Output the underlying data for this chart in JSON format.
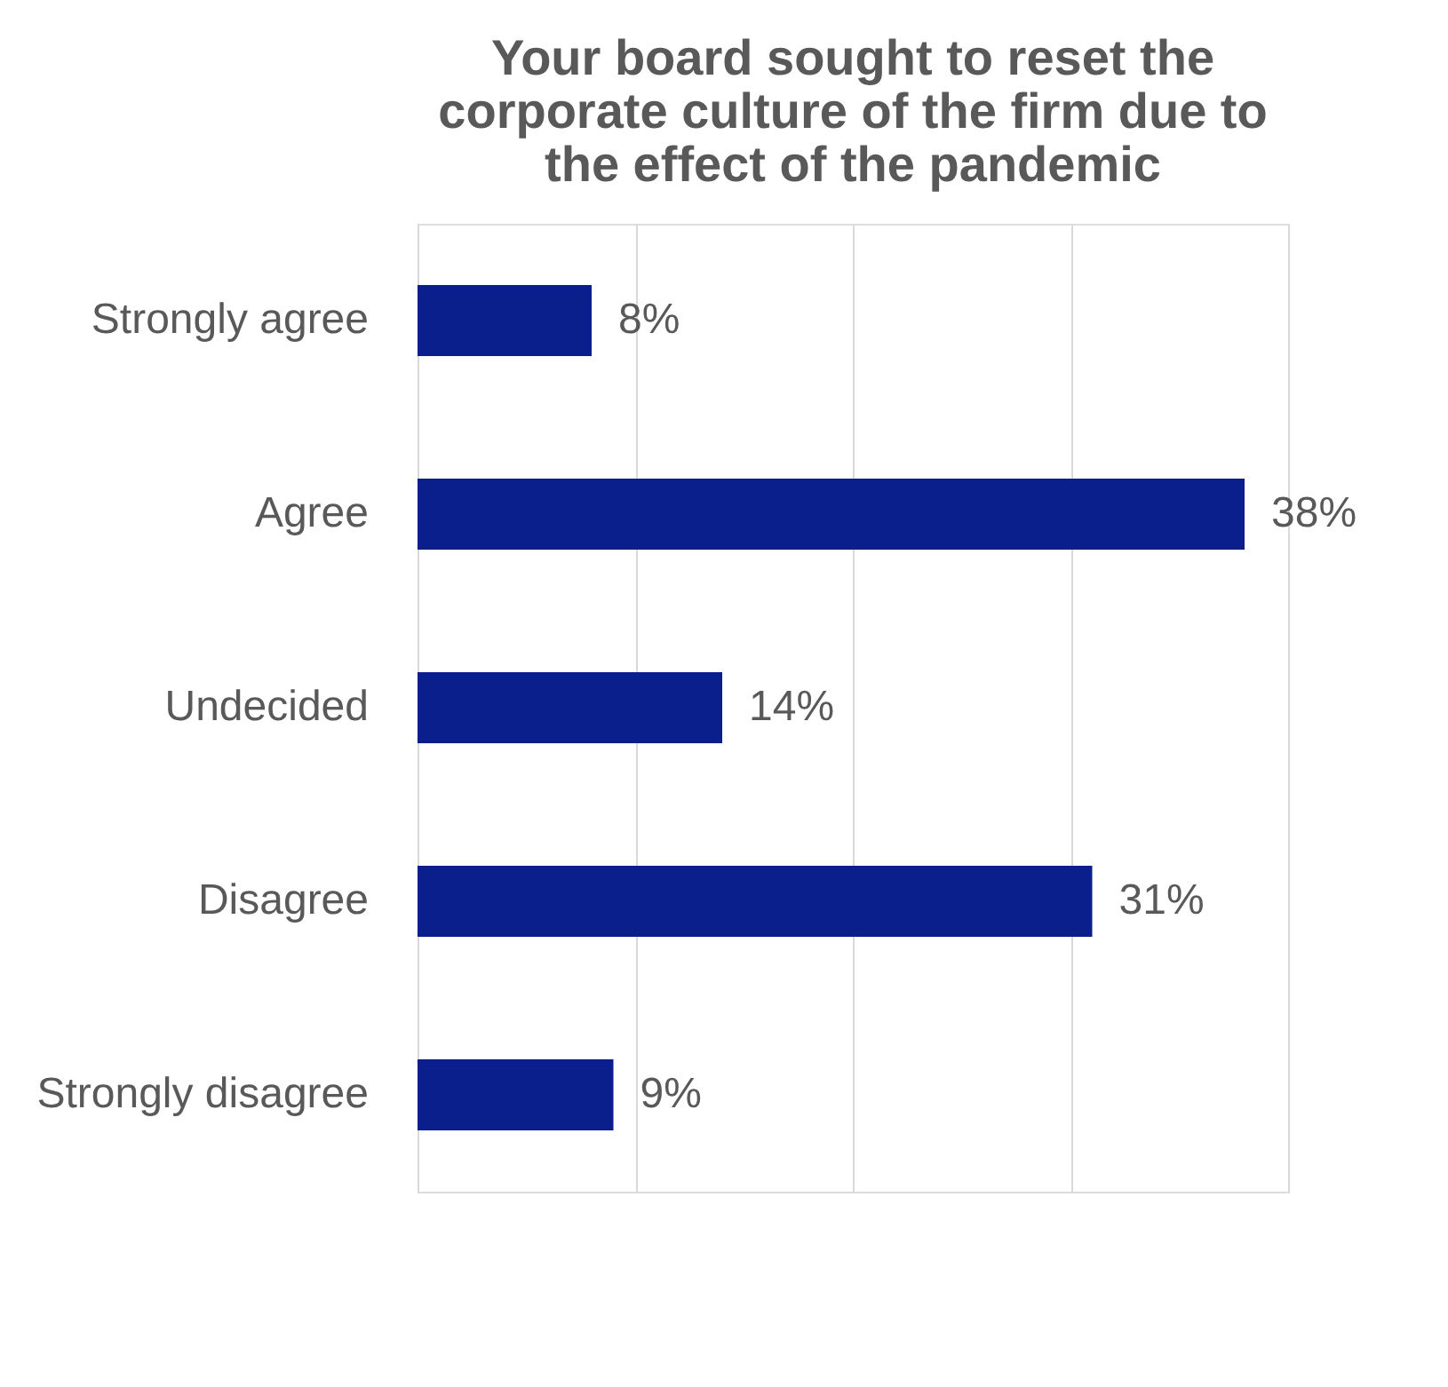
{
  "chart_data": {
    "type": "bar",
    "orientation": "horizontal",
    "title": "Your board sought to reset the corporate culture of the firm due to the effect of the pandemic",
    "categories": [
      "Strongly agree",
      "Agree",
      "Undecided",
      "Disagree",
      "Strongly disagree"
    ],
    "values": [
      8,
      38,
      14,
      31,
      9
    ],
    "value_labels": [
      "8%",
      "38%",
      "14%",
      "31%",
      "9%"
    ],
    "color": "#0b1f8c",
    "xlim": [
      0,
      40
    ],
    "xticks": [
      {
        "value": 0,
        "label": null
      },
      {
        "value": 10,
        "label": null
      },
      {
        "value": 20,
        "label": null
      },
      {
        "value": 30,
        "label": null
      },
      {
        "value": 40,
        "label": null
      }
    ],
    "grid": "x",
    "tick_labels": "y"
  }
}
